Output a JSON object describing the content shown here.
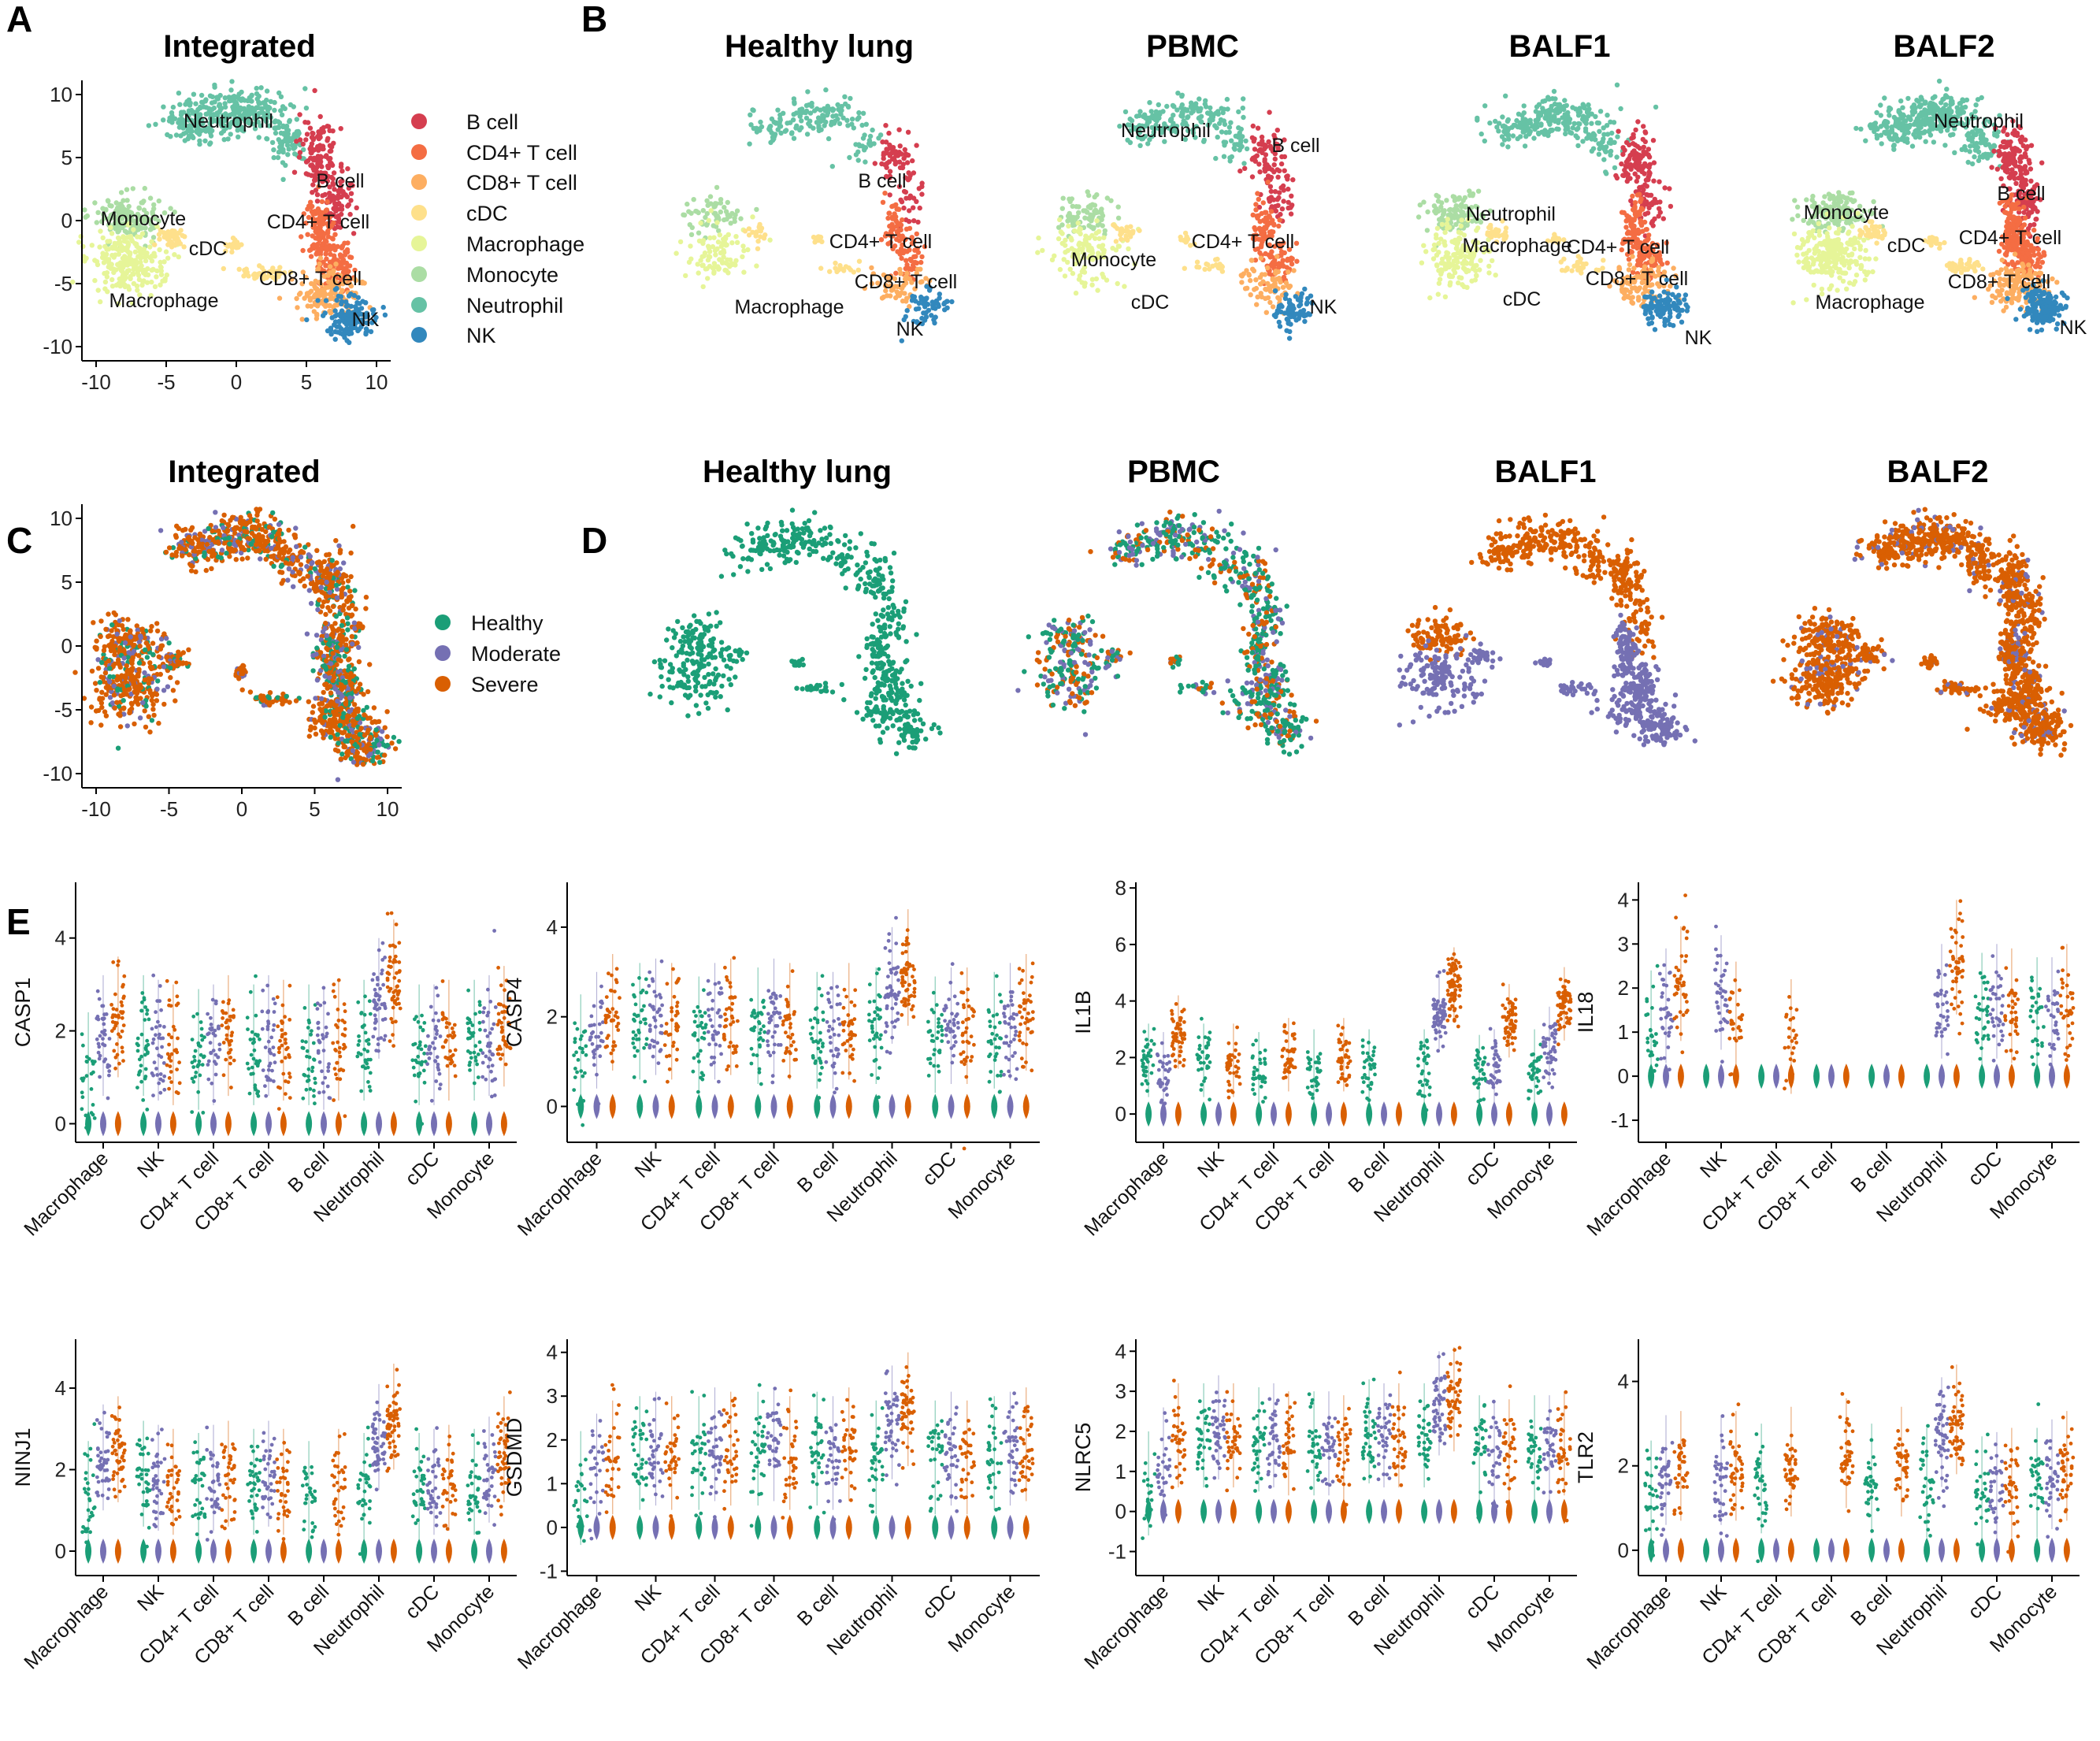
{
  "panels": {
    "A": "A",
    "B": "B",
    "C": "C",
    "D": "D",
    "E": "E"
  },
  "titles": {
    "a_integrated": "Integrated",
    "b_samples": [
      "Healthy lung",
      "PBMC",
      "BALF1",
      "BALF2"
    ],
    "c_integrated": "Integrated",
    "d_samples": [
      "Healthy lung",
      "PBMC",
      "BALF1",
      "BALF2"
    ]
  },
  "cell_types": {
    "legend": [
      "B cell",
      "CD4+ T cell",
      "CD8+ T cell",
      "cDC",
      "Macrophage",
      "Monocyte",
      "Neutrophil",
      "NK"
    ],
    "colors": [
      "#d53e4f",
      "#f46d43",
      "#fdae61",
      "#fee08b",
      "#e6f598",
      "#abdda4",
      "#66c2a5",
      "#3288bd"
    ]
  },
  "conditions": {
    "legend": [
      "Healthy",
      "Moderate",
      "Severe"
    ],
    "colors": [
      "#1b9e77",
      "#7570b3",
      "#d95f02"
    ]
  },
  "umap_axes": {
    "x_ticks": [
      "-10",
      "-5",
      "0",
      "5",
      "10"
    ],
    "y_ticks": [
      "10",
      "5",
      "0",
      "-5",
      "-10"
    ]
  },
  "cluster_labels": {
    "a": [
      "Neutrophil",
      "B cell",
      "Monocyte",
      "CD4+ T cell",
      "cDC",
      "CD8+ T cell",
      "Macrophage",
      "NK"
    ],
    "b_healthy": [
      "B cell",
      "CD4+ T cell",
      "CD8+ T cell",
      "Macrophage",
      "NK"
    ],
    "b_pbmc": [
      "Neutrophil",
      "B cell",
      "Monocyte",
      "CD4+ T cell",
      "cDC",
      "NK"
    ],
    "b_balf1": [
      "Neutrophil",
      "Macrophage",
      "CD4+ T cell",
      "CD8+ T cell",
      "cDC",
      "NK"
    ],
    "b_balf2": [
      "Neutrophil",
      "Monocyte",
      "B cell",
      "CD4+ T cell",
      "cDC",
      "CD8+ T cell",
      "Macrophage",
      "NK"
    ]
  },
  "chart_data": [
    {
      "type": "scatter",
      "title": "Integrated",
      "panel": "A",
      "xlim": [
        -11,
        11
      ],
      "ylim": [
        -10.5,
        10.5
      ],
      "clusters": [
        {
          "name": "Neutrophil",
          "x": 0,
          "y": 7
        },
        {
          "name": "B cell",
          "x": 5,
          "y": 4
        },
        {
          "name": "Monocyte",
          "x": -8,
          "y": -0.5
        },
        {
          "name": "CD4+ T cell",
          "x": 7,
          "y": -1
        },
        {
          "name": "cDC",
          "x": -3,
          "y": -2
        },
        {
          "name": "CD8+ T cell",
          "x": 4,
          "y": -4
        },
        {
          "name": "Macrophage",
          "x": -8,
          "y": -5
        },
        {
          "name": "NK",
          "x": 7.5,
          "y": -6
        }
      ]
    },
    {
      "type": "scatter",
      "title": "Integrated",
      "panel": "C",
      "xlim": [
        -11,
        11
      ],
      "ylim": [
        -10.5,
        10.5
      ],
      "legend": [
        "Healthy",
        "Moderate",
        "Severe"
      ]
    },
    {
      "type": "violin",
      "panel": "E",
      "categories": [
        "Macrophage",
        "NK",
        "CD4+ T cell",
        "CD8+ T cell",
        "B cell",
        "Neutrophil",
        "cDC",
        "Monocyte"
      ],
      "conditions": [
        "Healthy",
        "Moderate",
        "Severe"
      ],
      "genes": [
        {
          "name": "CASP1",
          "ylim": [
            -0.4,
            5.2
          ],
          "ticks": [
            0,
            2,
            4
          ],
          "values": [
            [
              1.0,
              1.8,
              2.2
            ],
            [
              1.8,
              1.7,
              1.6
            ],
            [
              1.5,
              1.6,
              1.8
            ],
            [
              1.6,
              1.8,
              1.7
            ],
            [
              1.6,
              1.5,
              1.7
            ],
            [
              1.7,
              2.6,
              3.0
            ],
            [
              1.6,
              1.6,
              1.7
            ],
            [
              1.7,
              1.8,
              2.0
            ]
          ],
          "zero": [
            true,
            true,
            true
          ]
        },
        {
          "name": "CASP4",
          "ylim": [
            -0.8,
            5.0
          ],
          "ticks": [
            0,
            2,
            4
          ],
          "values": [
            [
              1.1,
              1.6,
              2.0
            ],
            [
              1.8,
              1.9,
              1.8
            ],
            [
              1.5,
              1.8,
              1.9
            ],
            [
              1.7,
              1.9,
              1.8
            ],
            [
              1.6,
              1.6,
              1.8
            ],
            [
              1.7,
              2.6,
              3.0
            ],
            [
              1.5,
              1.7,
              1.7
            ],
            [
              1.6,
              1.8,
              2.0
            ]
          ],
          "zero": [
            true,
            true,
            true
          ]
        },
        {
          "name": "IL1B",
          "ylim": [
            -1.0,
            8.2
          ],
          "ticks": [
            0,
            2,
            4,
            6,
            8
          ],
          "values": [
            [
              1.8,
              1.5,
              2.8
            ],
            [
              1.8,
              0.0,
              1.8
            ],
            [
              1.5,
              0.0,
              2.0
            ],
            [
              1.6,
              0.0,
              2.0
            ],
            [
              1.6,
              0.0,
              0.0
            ],
            [
              1.6,
              3.5,
              4.5
            ],
            [
              1.4,
              1.6,
              3.2
            ],
            [
              1.6,
              2.4,
              3.8
            ]
          ],
          "zero": [
            true,
            true,
            true
          ]
        },
        {
          "name": "IL18",
          "ylim": [
            -1.5,
            4.4
          ],
          "ticks": [
            -1,
            0,
            1,
            2,
            3,
            4
          ],
          "values": [
            [
              1.0,
              1.5,
              2.0
            ],
            [
              0.0,
              1.8,
              1.2
            ],
            [
              0.0,
              0.0,
              0.8
            ],
            [
              0.0,
              0.0,
              0.0
            ],
            [
              0.0,
              0.0,
              0.0
            ],
            [
              0.0,
              1.6,
              2.6
            ],
            [
              1.4,
              1.6,
              1.5
            ],
            [
              1.3,
              1.3,
              1.6
            ]
          ],
          "zero": [
            true,
            true,
            true
          ]
        },
        {
          "name": "NINJ1",
          "ylim": [
            -0.6,
            5.2
          ],
          "ticks": [
            0,
            2,
            4
          ],
          "values": [
            [
              1.3,
              2.2,
              2.4
            ],
            [
              1.8,
              1.7,
              1.6
            ],
            [
              1.5,
              1.7,
              1.8
            ],
            [
              1.6,
              1.8,
              1.6
            ],
            [
              1.3,
              0.0,
              1.6
            ],
            [
              1.5,
              2.7,
              3.2
            ],
            [
              1.5,
              1.6,
              1.7
            ],
            [
              1.6,
              1.9,
              2.4
            ]
          ],
          "zero": [
            true,
            true,
            true
          ]
        },
        {
          "name": "GSDMD",
          "ylim": [
            -1.1,
            4.3
          ],
          "ticks": [
            -1,
            0,
            1,
            2,
            3,
            4
          ],
          "values": [
            [
              0.8,
              1.2,
              1.5
            ],
            [
              1.6,
              1.7,
              1.6
            ],
            [
              1.6,
              1.8,
              1.7
            ],
            [
              1.7,
              1.8,
              1.6
            ],
            [
              1.7,
              1.6,
              1.8
            ],
            [
              1.5,
              2.3,
              2.6
            ],
            [
              1.5,
              1.7,
              1.5
            ],
            [
              1.6,
              1.7,
              1.8
            ]
          ],
          "zero": [
            true,
            true,
            true
          ]
        },
        {
          "name": "NLRC5",
          "ylim": [
            -1.6,
            4.3
          ],
          "ticks": [
            -1,
            0,
            1,
            2,
            3,
            4
          ],
          "values": [
            [
              0.6,
              1.2,
              1.8
            ],
            [
              1.8,
              2.0,
              1.8
            ],
            [
              1.7,
              1.8,
              1.6
            ],
            [
              1.6,
              1.6,
              1.5
            ],
            [
              1.9,
              1.8,
              1.8
            ],
            [
              1.8,
              2.6,
              2.7
            ],
            [
              1.5,
              1.3,
              1.4
            ],
            [
              1.5,
              1.5,
              1.6
            ]
          ],
          "zero": [
            true,
            true,
            true
          ]
        },
        {
          "name": "TLR2",
          "ylim": [
            -0.6,
            5.0
          ],
          "ticks": [
            0,
            2,
            4
          ],
          "values": [
            [
              1.2,
              1.8,
              1.9
            ],
            [
              0.0,
              1.8,
              1.9
            ],
            [
              1.6,
              0.0,
              2.0
            ],
            [
              0.0,
              0.0,
              2.2
            ],
            [
              1.6,
              0.0,
              2.0
            ],
            [
              1.5,
              2.7,
              3.0
            ],
            [
              1.3,
              1.4,
              1.5
            ],
            [
              1.5,
              1.7,
              1.9
            ]
          ],
          "zero": [
            true,
            true,
            true
          ]
        }
      ]
    }
  ]
}
